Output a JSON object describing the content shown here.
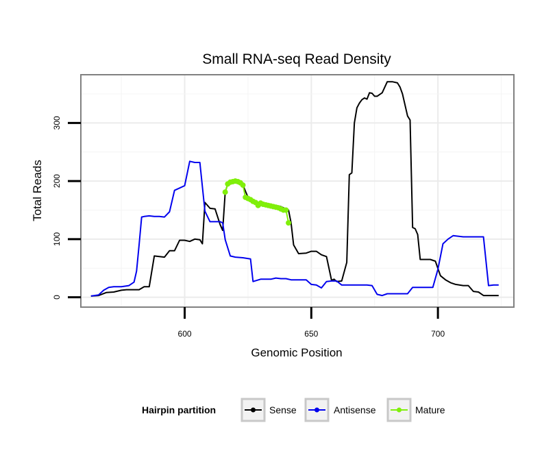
{
  "chart_data": {
    "type": "line",
    "title": "Small RNA-seq Read Density",
    "xlabel": "Genomic Position",
    "ylabel": "Total Reads",
    "xlim": [
      559,
      730
    ],
    "ylim": [
      -17,
      383
    ],
    "x_ticks": [
      600,
      650,
      700
    ],
    "x_tick_labels": [
      "600",
      "650",
      "700"
    ],
    "y_ticks": [
      0,
      100,
      200,
      300
    ],
    "y_tick_labels": [
      "0",
      "100",
      "200",
      "300"
    ],
    "grid": true,
    "legend_position": "bottom",
    "legend_title": "Hairpin partition",
    "series": [
      {
        "name": "Sense",
        "color": "#000000",
        "x": [
          563,
          566,
          569,
          572,
          575,
          577,
          580,
          582,
          584,
          586,
          588,
          590,
          592,
          594,
          596,
          598,
          600,
          602,
          604,
          606,
          607,
          608,
          610,
          612,
          614,
          615,
          616,
          617,
          618,
          619,
          620,
          621,
          622,
          623,
          625,
          627,
          629,
          630,
          632,
          634,
          636,
          638,
          640,
          641,
          642,
          643,
          645,
          648,
          650,
          652,
          654,
          656,
          658,
          659,
          660,
          662,
          664,
          665,
          666,
          667,
          668,
          669,
          670,
          671,
          672,
          673,
          674,
          675,
          676,
          678,
          680,
          682,
          684,
          685,
          686,
          688,
          689,
          690,
          691,
          692,
          693,
          694,
          695,
          697,
          699,
          701,
          703,
          705,
          707,
          710,
          712,
          714,
          716,
          718,
          720,
          722,
          724
        ],
        "values": [
          2,
          3,
          8,
          9,
          12,
          13,
          13,
          13,
          18,
          18,
          71,
          70,
          69,
          80,
          80,
          98,
          98,
          96,
          100,
          99,
          92,
          163,
          153,
          152,
          125,
          115,
          181,
          195,
          198,
          199,
          200,
          199,
          197,
          193,
          172,
          168,
          163,
          158,
          162,
          160,
          158,
          156,
          152,
          150,
          128,
          90,
          75,
          76,
          79,
          79,
          73,
          70,
          29,
          31,
          27,
          28,
          60,
          211,
          214,
          300,
          326,
          334,
          340,
          343,
          341,
          352,
          351,
          346,
          346,
          352,
          371,
          371,
          369,
          362,
          350,
          312,
          305,
          120,
          118,
          108,
          65,
          65,
          65,
          65,
          62,
          37,
          30,
          25,
          22,
          20,
          20,
          10,
          9,
          3,
          3,
          3,
          3
        ]
      },
      {
        "name": "Antisense",
        "color": "#0000ee",
        "x": [
          563,
          566,
          568,
          570,
          572,
          575,
          578,
          580,
          581,
          582,
          583,
          584,
          586,
          588,
          590,
          592,
          594,
          596,
          598,
          600,
          602,
          604,
          606,
          608,
          610,
          612,
          614,
          615,
          616,
          618,
          620,
          623,
          626,
          627,
          630,
          632,
          634,
          636,
          638,
          640,
          642,
          644,
          646,
          648,
          650,
          652,
          654,
          656,
          658,
          660,
          662,
          664,
          666,
          668,
          670,
          672,
          674,
          676,
          678,
          680,
          682,
          684,
          686,
          688,
          690,
          692,
          694,
          696,
          698,
          700,
          702,
          704,
          706,
          708,
          710,
          712,
          714,
          716,
          718,
          720,
          722,
          724
        ],
        "values": [
          2,
          4,
          12,
          17,
          18,
          18,
          20,
          26,
          45,
          90,
          138,
          139,
          140,
          139,
          139,
          138,
          147,
          184,
          188,
          192,
          234,
          232,
          232,
          148,
          130,
          130,
          130,
          128,
          99,
          71,
          69,
          68,
          66,
          27,
          31,
          31,
          31,
          33,
          32,
          32,
          30,
          30,
          30,
          30,
          22,
          21,
          16,
          27,
          28,
          28,
          21,
          21,
          21,
          21,
          21,
          21,
          20,
          5,
          3,
          6,
          6,
          6,
          6,
          6,
          17,
          17,
          17,
          17,
          17,
          48,
          92,
          100,
          106,
          105,
          104,
          104,
          104,
          104,
          104,
          20,
          21,
          21
        ]
      },
      {
        "name": "Mature",
        "color": "#80ef0a",
        "x": [
          616,
          617,
          618,
          619,
          620,
          621,
          622,
          623,
          624,
          625,
          626,
          627,
          628,
          629,
          630,
          631,
          632,
          633,
          634,
          635,
          636,
          637,
          638,
          639,
          640,
          641
        ],
        "values": [
          181,
          195,
          198,
          199,
          200,
          199,
          197,
          193,
          172,
          170,
          168,
          165,
          163,
          158,
          162,
          160,
          159,
          158,
          157,
          156,
          155,
          154,
          152,
          150,
          150,
          128
        ]
      }
    ]
  }
}
